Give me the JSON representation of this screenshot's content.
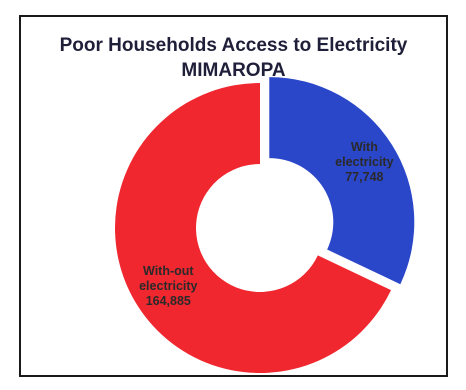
{
  "chart_data": {
    "type": "pie",
    "title": "Poor Households Access to Electricity",
    "subtitle": "MIMAROPA",
    "donut": true,
    "slices": [
      {
        "label_lines": [
          "With",
          "electricity"
        ],
        "value_label": "77,748",
        "value": 77748,
        "color": "#2b47c9",
        "text_color": "#2a2a2a",
        "exploded": true
      },
      {
        "label_lines": [
          "With-out",
          "electricity"
        ],
        "value_label": "164,885",
        "value": 164885,
        "color": "#f0272e",
        "text_color": "#2a2a2a",
        "exploded": false
      }
    ]
  }
}
